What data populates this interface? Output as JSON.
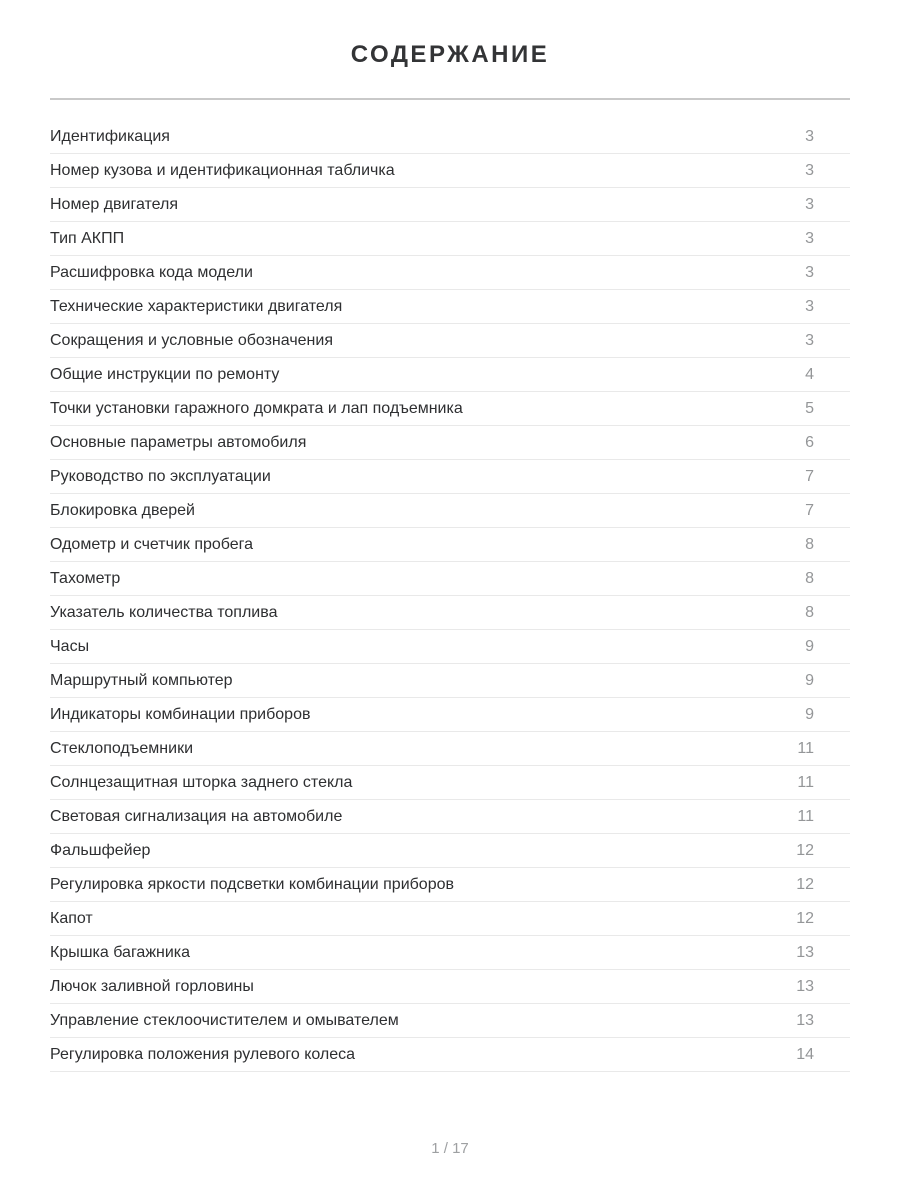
{
  "toc": {
    "title": "СОДЕРЖАНИЕ",
    "items": [
      {
        "label": "Идентификация",
        "page": "3"
      },
      {
        "label": "Номер кузова и идентификационная табличка",
        "page": "3"
      },
      {
        "label": "Номер двигателя",
        "page": "3"
      },
      {
        "label": "Тип АКПП",
        "page": "3"
      },
      {
        "label": "Расшифровка кода модели",
        "page": "3"
      },
      {
        "label": "Технические характеристики двигателя",
        "page": "3"
      },
      {
        "label": "Сокращения и условные обозначения",
        "page": "3"
      },
      {
        "label": "Общие инструкции по ремонту",
        "page": "4"
      },
      {
        "label": "Точки установки гаражного домкрата и лап подъемника",
        "page": "5"
      },
      {
        "label": "Основные параметры автомобиля",
        "page": "6"
      },
      {
        "label": "Руководство по эксплуатации",
        "page": "7"
      },
      {
        "label": "Блокировка дверей",
        "page": "7"
      },
      {
        "label": "Одометр и счетчик пробега",
        "page": "8"
      },
      {
        "label": "Тахометр",
        "page": "8"
      },
      {
        "label": "Указатель количества топлива",
        "page": "8"
      },
      {
        "label": "Часы",
        "page": "9"
      },
      {
        "label": "Маршрутный компьютер",
        "page": "9"
      },
      {
        "label": "Индикаторы комбинации приборов",
        "page": "9"
      },
      {
        "label": "Стеклоподъемники",
        "page": "11"
      },
      {
        "label": "Солнцезащитная шторка заднего стекла",
        "page": "11"
      },
      {
        "label": "Световая сигнализация на автомобиле",
        "page": "11"
      },
      {
        "label": "Фальшфейер",
        "page": "12"
      },
      {
        "label": "Регулировка яркости подсветки комбинации приборов",
        "page": "12"
      },
      {
        "label": "Капот",
        "page": "12"
      },
      {
        "label": "Крышка багажника",
        "page": "13"
      },
      {
        "label": "Лючок заливной горловины",
        "page": "13"
      },
      {
        "label": "Управление стеклоочистителем и омывателем",
        "page": "13"
      },
      {
        "label": "Регулировка положения рулевого колеса",
        "page": "14"
      }
    ]
  },
  "footer": {
    "page_indicator": "1 / 17"
  },
  "colors": {
    "item_text": "#2e2f31",
    "page_number": "#949698",
    "title_text": "#333436",
    "title_divider": "#c9c9c9",
    "row_divider": "#e9e9e9",
    "footer_text": "#9ea0a2",
    "background": "#ffffff"
  }
}
